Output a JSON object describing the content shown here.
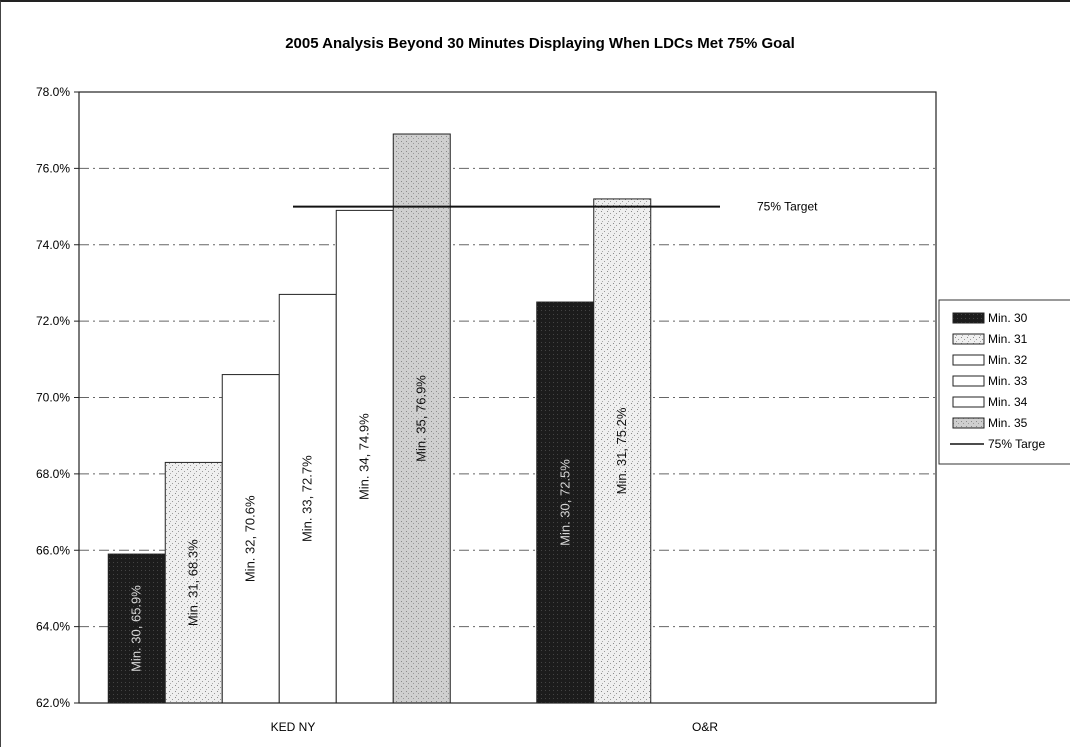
{
  "chart_data": {
    "type": "bar",
    "title": "2005 Analysis Beyond 30 Minutes Displaying When LDCs Met 75% Goal",
    "xlabel": "",
    "ylabel": "",
    "ylim": [
      62.0,
      78.0
    ],
    "ytick_step": 2.0,
    "ytick_labels": [
      "62.0%",
      "64.0%",
      "66.0%",
      "68.0%",
      "70.0%",
      "72.0%",
      "74.0%",
      "76.0%",
      "78.0%"
    ],
    "grid": true,
    "legend_position": "right",
    "categories": [
      "KED NY",
      "O&R"
    ],
    "bars": [
      {
        "group": "KED NY",
        "series": "Min. 30",
        "value": 65.9,
        "label": "Min. 30, 65.9%"
      },
      {
        "group": "KED NY",
        "series": "Min. 31",
        "value": 68.3,
        "label": "Min. 31, 68.3%"
      },
      {
        "group": "KED NY",
        "series": "Min. 32",
        "value": 70.6,
        "label": "Min. 32, 70.6%"
      },
      {
        "group": "KED NY",
        "series": "Min. 33",
        "value": 72.7,
        "label": "Min. 33, 72.7%"
      },
      {
        "group": "KED NY",
        "series": "Min. 34",
        "value": 74.9,
        "label": "Min. 34, 74.9%"
      },
      {
        "group": "KED NY",
        "series": "Min. 35",
        "value": 76.9,
        "label": "Min. 35, 76.9%"
      },
      {
        "group": "O&R",
        "series": "Min. 30",
        "value": 72.5,
        "label": "Min. 30, 72.5%"
      },
      {
        "group": "O&R",
        "series": "Min. 31",
        "value": 75.2,
        "label": "Min. 31, 75.2%"
      }
    ],
    "series": [
      {
        "name": "Min. 30",
        "color": "#1a1a1a",
        "pattern": "dark"
      },
      {
        "name": "Min. 31",
        "color": "#f2f2f2",
        "pattern": "speckle"
      },
      {
        "name": "Min. 32",
        "color": "#ffffff",
        "pattern": "none"
      },
      {
        "name": "Min. 33",
        "color": "#ffffff",
        "pattern": "none"
      },
      {
        "name": "Min. 34",
        "color": "#ffffff",
        "pattern": "none"
      },
      {
        "name": "Min. 35",
        "color": "#d6d6d6",
        "pattern": "speckle"
      }
    ],
    "target": {
      "value": 75.0,
      "label": "75%  Target",
      "legend_label": "75%  Targe"
    },
    "legend_entries": [
      "Min. 30",
      "Min. 31",
      "Min. 32",
      "Min. 33",
      "Min. 34",
      "Min. 35",
      "75%  Targe"
    ]
  }
}
